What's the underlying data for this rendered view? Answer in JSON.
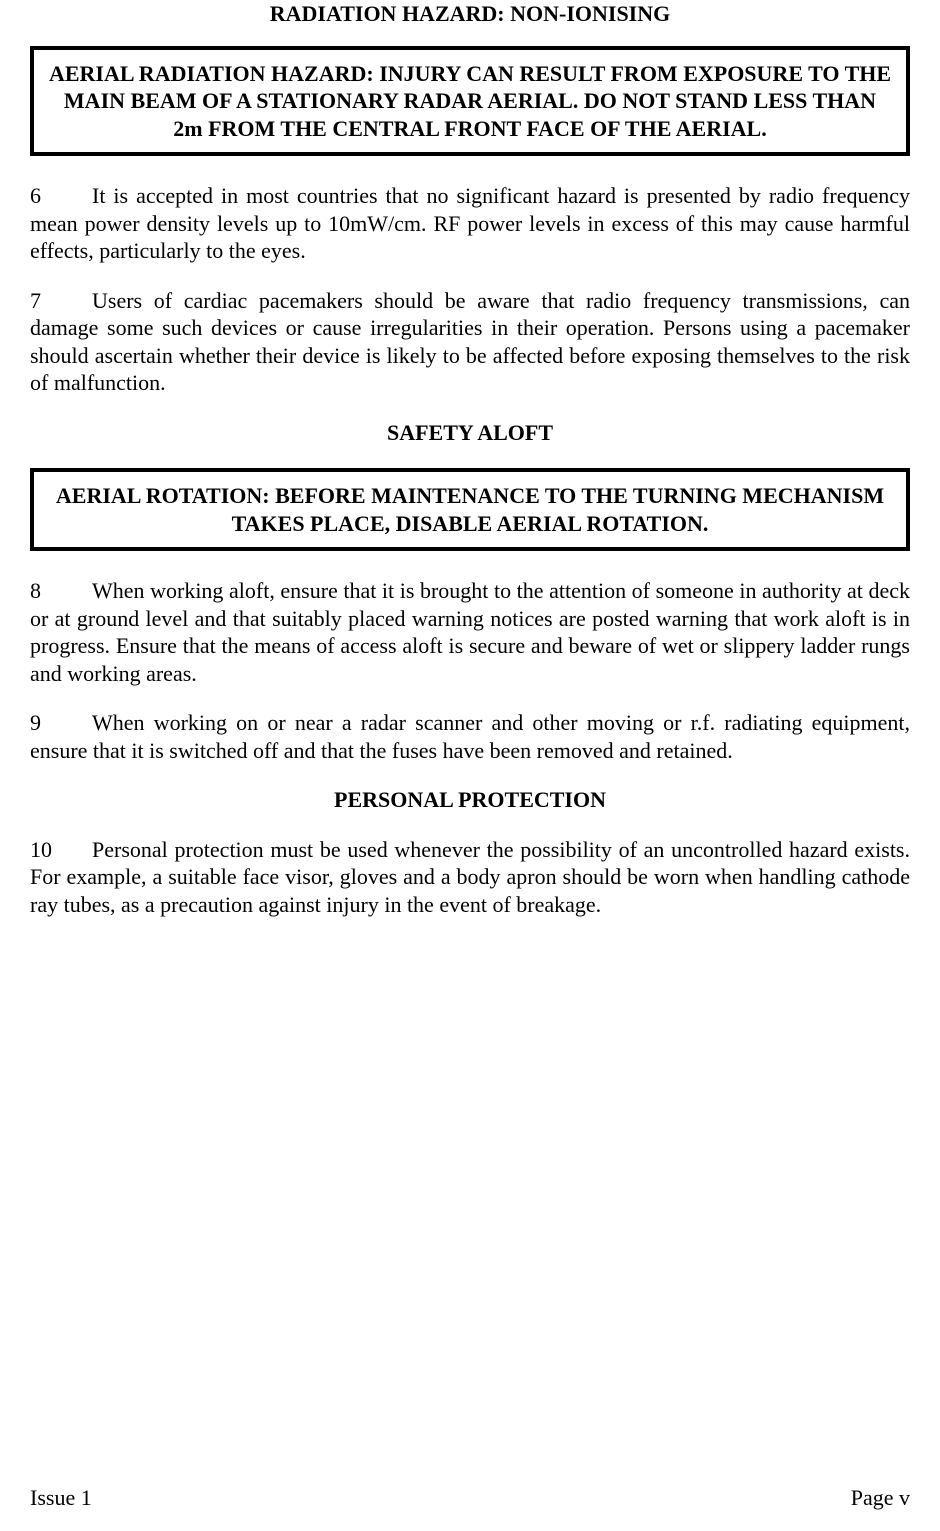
{
  "page": {
    "title": "RADIATION HAZARD: NON-IONISING",
    "warning1": "AERIAL RADIATION HAZARD: INJURY CAN RESULT FROM EXPOSURE TO THE MAIN BEAM OF A STATIONARY RADAR AERIAL. DO NOT STAND LESS THAN 2m FROM THE CENTRAL FRONT FACE OF THE AERIAL.",
    "para6_num": "6",
    "para6": "It is accepted in most countries that no significant hazard is presented by radio frequency mean power density levels up to 10mW/cm. RF power levels in excess of this may cause harmful effects, particularly to the eyes.",
    "para7_num": "7",
    "para7": "Users of cardiac  pacemakers  should be aware that radio frequency transmissions, can damage some such devices or cause irregularities in their operation.  Persons using a pacemaker should ascertain whether their device is likely to be affected before exposing themselves to the risk of malfunction.",
    "section2_title": "SAFETY ALOFT",
    "warning2": "AERIAL ROTATION: BEFORE MAINTENANCE TO THE TURNING MECHANISM TAKES PLACE, DISABLE AERIAL ROTATION.",
    "para8_num": "8",
    "para8": "When working aloft, ensure that it is brought to the attention of someone in authority at deck or at ground level and that suitably placed warning notices are posted warning that work aloft is in progress.  Ensure that the means of access aloft is secure and beware of wet or slippery ladder rungs and working areas.",
    "para9_num": "9",
    "para9": "When working on or near a radar scanner and other moving or r.f. radiating equipment, ensure that it is switched off and that the fuses have been removed and retained.",
    "section3_title": "PERSONAL PROTECTION",
    "para10_num": "10",
    "para10": "Personal protection must be used whenever the possibility of an uncontrolled hazard exists.  For example, a suitable face visor, gloves and a body apron should be worn when handling cathode ray tubes, as a precaution against injury in the event of breakage.",
    "footer_left": "Issue 1",
    "footer_right": "Page v"
  }
}
